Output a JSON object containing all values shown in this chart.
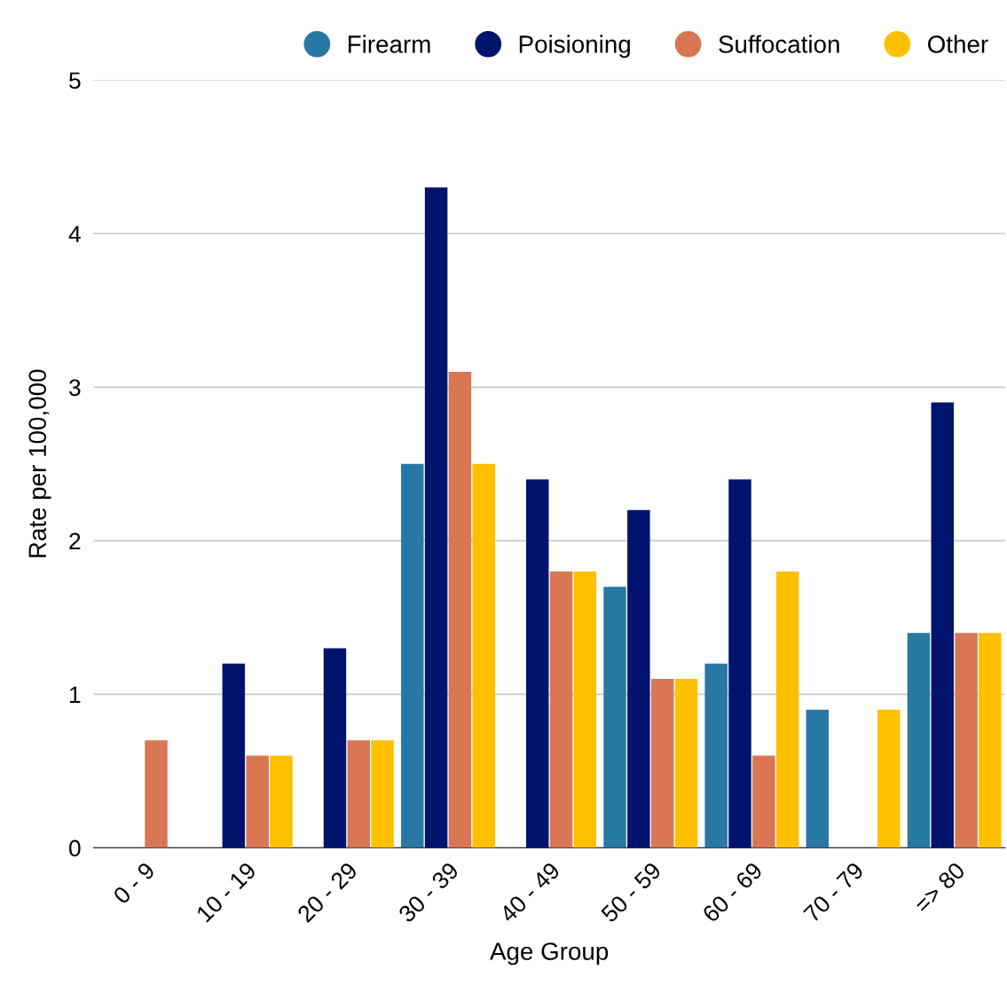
{
  "chart_data": {
    "type": "bar",
    "xlabel": "Age Group",
    "ylabel": "Rate per 100,000",
    "categories": [
      "0 - 9",
      "10 - 19",
      "20 - 29",
      "30 - 39",
      "40 - 49",
      "50 - 59",
      "60 - 69",
      "70 - 79",
      "=> 80"
    ],
    "series": [
      {
        "name": "Firearm",
        "color": "#2878a4",
        "values": [
          null,
          null,
          null,
          2.5,
          null,
          1.7,
          1.2,
          0.9,
          1.4
        ]
      },
      {
        "name": "Poisioning",
        "color": "#00146e",
        "values": [
          null,
          1.2,
          1.3,
          4.3,
          2.4,
          2.2,
          2.4,
          null,
          2.9
        ]
      },
      {
        "name": "Suffocation",
        "color": "#d97654",
        "values": [
          0.7,
          0.6,
          0.7,
          3.1,
          1.8,
          1.1,
          0.6,
          null,
          1.4
        ]
      },
      {
        "name": "Other",
        "color": "#ffc000",
        "values": [
          null,
          0.6,
          0.7,
          2.5,
          1.8,
          1.1,
          1.8,
          0.9,
          1.4
        ]
      }
    ],
    "ylim": [
      0,
      5
    ],
    "yticks": [
      0,
      1,
      2,
      3,
      4,
      5
    ],
    "grid": "y",
    "legend": "top"
  }
}
